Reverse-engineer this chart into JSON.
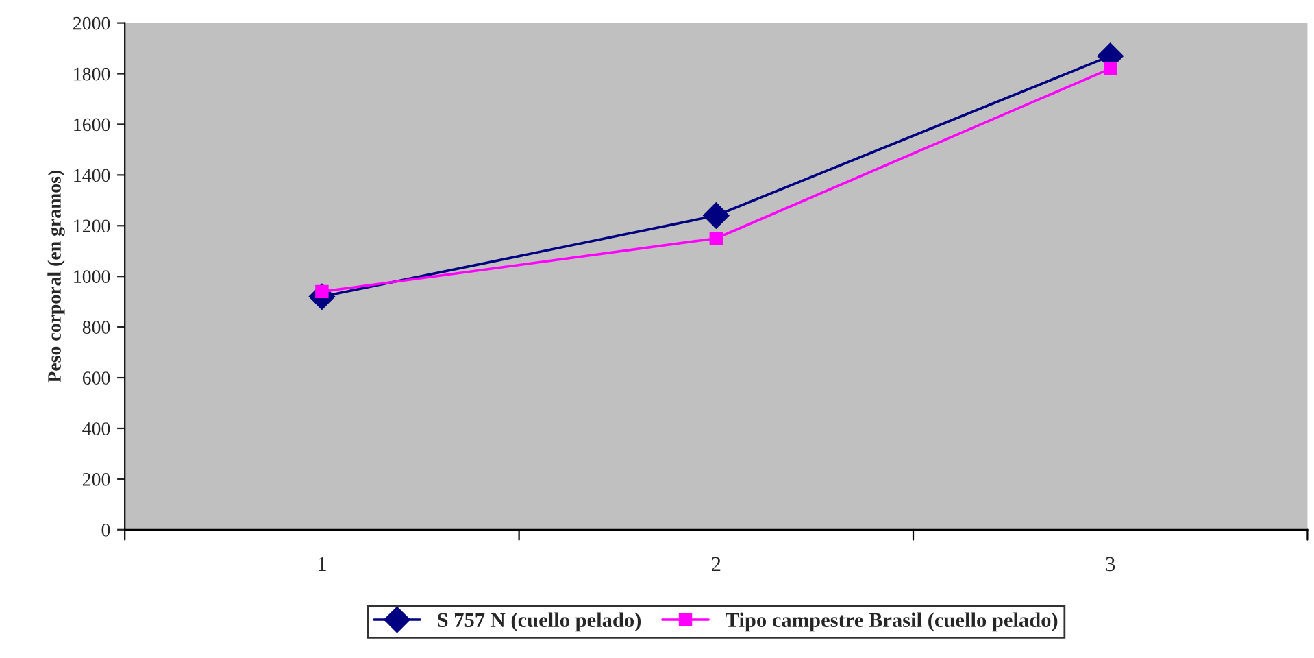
{
  "chart_data": {
    "type": "line",
    "ylabel": "Peso corporal (en gramos)",
    "categories": [
      "1",
      "2",
      "3"
    ],
    "series": [
      {
        "name": "S 757 N (cuello pelado)",
        "color": "#000080",
        "marker": "diamond",
        "values": [
          920,
          1240,
          1870
        ]
      },
      {
        "name": "Tipo campestre Brasil (cuello pelado)",
        "color": "#ff00ff",
        "marker": "square",
        "values": [
          940,
          1150,
          1820
        ]
      }
    ],
    "ylim": [
      0,
      2000
    ],
    "yticks": [
      0,
      200,
      400,
      600,
      800,
      1000,
      1200,
      1400,
      1600,
      1800,
      2000
    ],
    "grid": false,
    "legend": "bottom"
  }
}
